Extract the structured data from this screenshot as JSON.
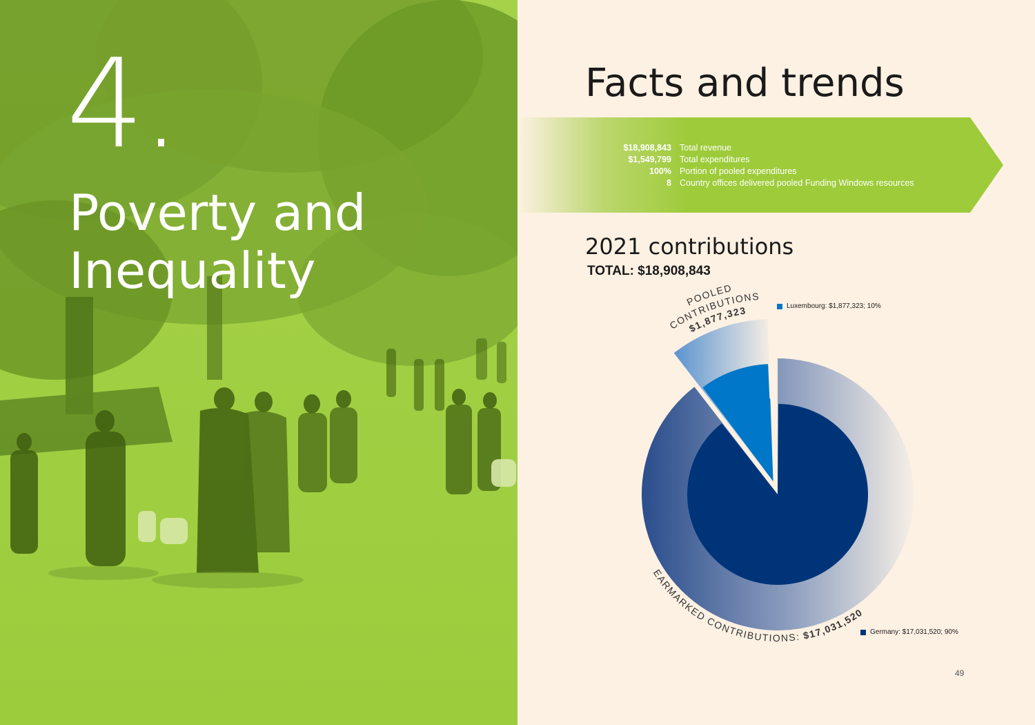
{
  "left_page": {
    "chapter_number": "4.",
    "chapter_title_line1": "Poverty and",
    "chapter_title_line2": "Inequality",
    "background_color": "#9ecb3a"
  },
  "right_page": {
    "heading": "Facts and trends",
    "stats": [
      {
        "value": "$18,908,843",
        "label": "Total revenue"
      },
      {
        "value": "$1,549,799",
        "label": "Total expenditures"
      },
      {
        "value": "100%",
        "label": "Portion of pooled expenditures"
      },
      {
        "value": "8",
        "label": "Country offices delivered pooled Funding Windows resources"
      }
    ],
    "contributions_heading": "2021 contributions",
    "contributions_total": "TOTAL: $18,908,843",
    "page_number": "49"
  },
  "chart_data": {
    "type": "pie",
    "labels": [
      "Luxembourg",
      "Germany"
    ],
    "values": [
      1877323,
      17031520
    ],
    "percentages": [
      10,
      90
    ],
    "colors": [
      "#0077c8",
      "#003478"
    ],
    "segment_labels": {
      "pooled_line1": "POOLED",
      "pooled_line2": "CONTRIBUTIONS",
      "pooled_amount": "$1,877,323",
      "earmarked_text": "EARMARKED CONTRIBUTIONS: ",
      "earmarked_amount": "$17,031,520"
    },
    "legend": [
      {
        "text": "Luxembourg: $1,877,323; 10%",
        "color": "#0077c8"
      },
      {
        "text": "Germany: $17,031,520; 90%",
        "color": "#003478"
      }
    ]
  }
}
